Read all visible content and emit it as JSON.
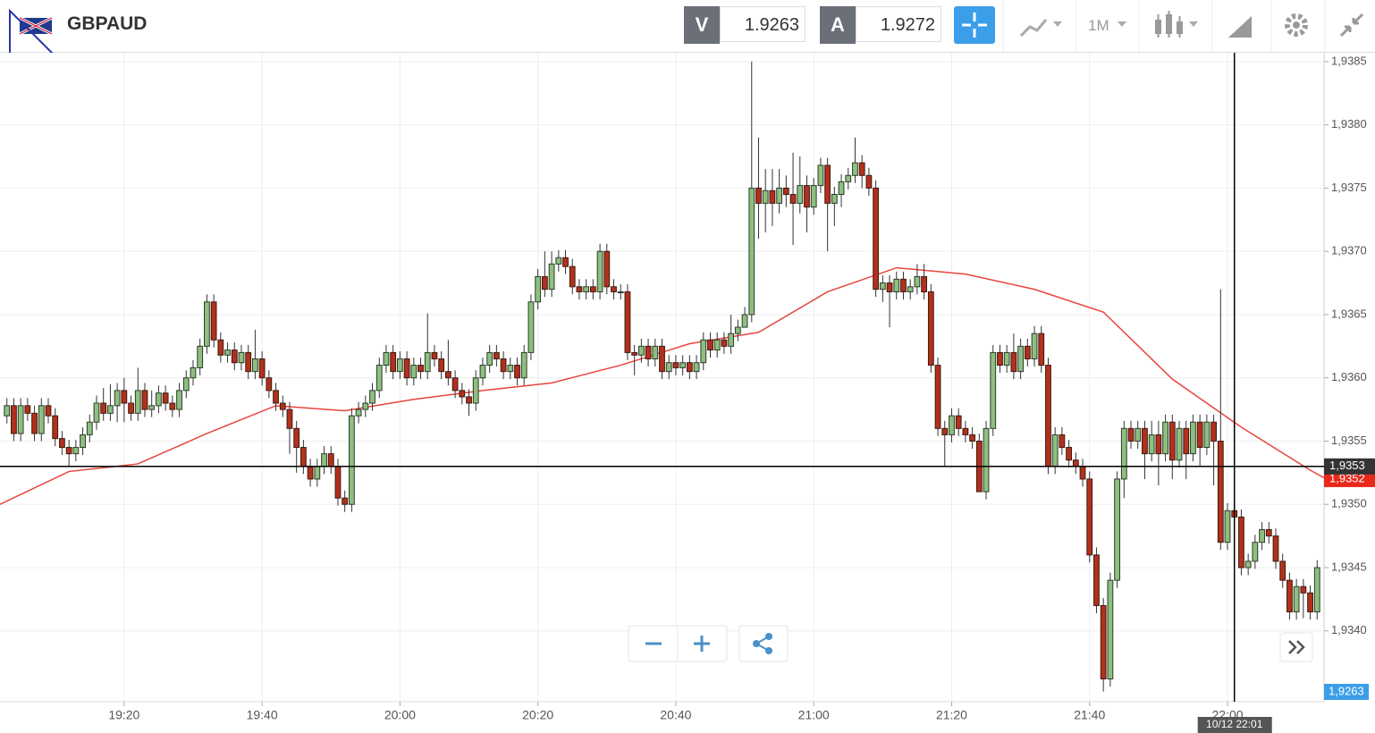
{
  "header": {
    "symbol": "GBPAUD",
    "bid_label": "V",
    "bid": 1.9263,
    "ask_label": "A",
    "ask": 1.9272,
    "timeframe": "1M"
  },
  "chart_data": {
    "type": "candlestick",
    "up_color": "#8fbf7f",
    "down_color": "#b3301c",
    "x": [
      "19:03",
      "19:04",
      "19:05",
      "19:06",
      "19:07",
      "19:08",
      "19:09",
      "19:10",
      "19:11",
      "19:12",
      "19:13",
      "19:14",
      "19:15",
      "19:16",
      "19:17",
      "19:18",
      "19:19",
      "19:20",
      "19:21",
      "19:22",
      "19:23",
      "19:24",
      "19:25",
      "19:26",
      "19:27",
      "19:28",
      "19:29",
      "19:30",
      "19:31",
      "19:32",
      "19:33",
      "19:34",
      "19:35",
      "19:36",
      "19:37",
      "19:38",
      "19:39",
      "19:40",
      "19:41",
      "19:42",
      "19:43",
      "19:44",
      "19:45",
      "19:46",
      "19:47",
      "19:48",
      "19:49",
      "19:50",
      "19:51",
      "19:52",
      "19:53",
      "19:54",
      "19:55",
      "19:56",
      "19:57",
      "19:58",
      "19:59",
      "20:00",
      "20:01",
      "20:02",
      "20:03",
      "20:04",
      "20:05",
      "20:06",
      "20:07",
      "20:08",
      "20:09",
      "20:10",
      "20:11",
      "20:12",
      "20:13",
      "20:14",
      "20:15",
      "20:16",
      "20:17",
      "20:18",
      "20:19",
      "20:20",
      "20:21",
      "20:22",
      "20:23",
      "20:24",
      "20:25",
      "20:26",
      "20:27",
      "20:28",
      "20:29",
      "20:30",
      "20:31",
      "20:32",
      "20:33",
      "20:34",
      "20:35",
      "20:36",
      "20:37",
      "20:38",
      "20:39",
      "20:40",
      "20:41",
      "20:42",
      "20:43",
      "20:44",
      "20:45",
      "20:46",
      "20:47",
      "20:48",
      "20:49",
      "20:50",
      "20:51",
      "20:52",
      "20:53",
      "20:54",
      "20:55",
      "20:56",
      "20:57",
      "20:58",
      "20:59",
      "21:00",
      "21:01",
      "21:02",
      "21:03",
      "21:04",
      "21:05",
      "21:06",
      "21:07",
      "21:08",
      "21:09",
      "21:10",
      "21:11",
      "21:12",
      "21:13",
      "21:14",
      "21:15",
      "21:16",
      "21:17",
      "21:18",
      "21:19",
      "21:20",
      "21:21",
      "21:22",
      "21:23",
      "21:24",
      "21:25",
      "21:26",
      "21:27",
      "21:28",
      "21:29",
      "21:30",
      "21:31",
      "21:32",
      "21:33",
      "21:34",
      "21:35",
      "21:36",
      "21:37",
      "21:38",
      "21:39",
      "21:40",
      "21:41",
      "21:42",
      "21:43",
      "21:44",
      "21:45",
      "21:46",
      "21:47",
      "21:48",
      "21:49",
      "21:50",
      "21:51",
      "21:52",
      "21:53",
      "21:54",
      "21:55",
      "21:56",
      "21:57",
      "21:58",
      "21:59",
      "22:00",
      "22:01",
      "22:02",
      "22:03",
      "22:04",
      "22:05",
      "22:06",
      "22:07",
      "22:08",
      "22:09",
      "22:10",
      "22:11",
      "22:12",
      "22:13"
    ],
    "open": [
      1.9357,
      1.93578,
      1.93556,
      1.93578,
      1.93572,
      1.93556,
      1.93578,
      1.9357,
      1.93552,
      1.93545,
      1.9354,
      1.93545,
      1.93555,
      1.93565,
      1.9358,
      1.93572,
      1.93578,
      1.9359,
      1.9358,
      1.93572,
      1.9359,
      1.93575,
      1.93578,
      1.93588,
      1.9358,
      1.93575,
      1.9359,
      1.936,
      1.93608,
      1.93625,
      1.9366,
      1.9363,
      1.93618,
      1.93622,
      1.93612,
      1.9362,
      1.93605,
      1.93615,
      1.936,
      1.9359,
      1.9358,
      1.93575,
      1.9356,
      1.93545,
      1.9353,
      1.9352,
      1.9353,
      1.9354,
      1.9353,
      1.93505,
      1.935,
      1.9357,
      1.93575,
      1.9358,
      1.9359,
      1.9361,
      1.9362,
      1.93605,
      1.93615,
      1.936,
      1.9361,
      1.93605,
      1.9362,
      1.93615,
      1.93605,
      1.936,
      1.9359,
      1.93585,
      1.9358,
      1.936,
      1.9361,
      1.9362,
      1.93615,
      1.93605,
      1.9361,
      1.936,
      1.9362,
      1.9366,
      1.9368,
      1.9367,
      1.9369,
      1.93695,
      1.93688,
      1.93672,
      1.93668,
      1.93672,
      1.93668,
      1.937,
      1.93672,
      1.93668,
      1.93668,
      1.9362,
      1.93618,
      1.93625,
      1.93615,
      1.93625,
      1.93605,
      1.93612,
      1.93608,
      1.93612,
      1.93605,
      1.93612,
      1.9363,
      1.93622,
      1.9363,
      1.93625,
      1.93635,
      1.9364,
      1.9365,
      1.9375,
      1.93738,
      1.93748,
      1.93738,
      1.9375,
      1.93745,
      1.93738,
      1.93752,
      1.93735,
      1.93752,
      1.93768,
      1.93738,
      1.93745,
      1.93755,
      1.9376,
      1.9377,
      1.9376,
      1.9375,
      1.9367,
      1.93675,
      1.93668,
      1.93678,
      1.93668,
      1.93672,
      1.9368,
      1.93668,
      1.9361,
      1.9356,
      1.93555,
      1.9357,
      1.9356,
      1.93555,
      1.9355,
      1.9351,
      1.9356,
      1.9362,
      1.9361,
      1.9362,
      1.93605,
      1.93625,
      1.93615,
      1.93635,
      1.9361,
      1.9353,
      1.93555,
      1.93545,
      1.93535,
      1.9353,
      1.9352,
      1.9346,
      1.9342,
      1.93362,
      1.9344,
      1.9352,
      1.9356,
      1.9355,
      1.9356,
      1.9354,
      1.93555,
      1.9354,
      1.93565,
      1.93535,
      1.9356,
      1.9354,
      1.93565,
      1.93545,
      1.93565,
      1.9355,
      1.9347,
      1.93495,
      1.9349,
      1.9345,
      1.93455,
      1.9347,
      1.9348,
      1.93475,
      1.93455,
      1.9344,
      1.93415,
      1.93435,
      1.9343,
      1.93415
    ],
    "high": [
      1.93584,
      1.93584,
      1.93584,
      1.93584,
      1.93578,
      1.93584,
      1.93584,
      1.93576,
      1.93558,
      1.93551,
      1.93551,
      1.93561,
      1.93571,
      1.93586,
      1.93592,
      1.93595,
      1.93596,
      1.936,
      1.93586,
      1.93608,
      1.93596,
      1.9359,
      1.93594,
      1.93594,
      1.93586,
      1.93596,
      1.93606,
      1.93614,
      1.93631,
      1.93666,
      1.93666,
      1.93636,
      1.93628,
      1.93628,
      1.93626,
      1.93626,
      1.93638,
      1.93621,
      1.93606,
      1.93596,
      1.93586,
      1.93581,
      1.93566,
      1.93551,
      1.93536,
      1.93536,
      1.93546,
      1.93546,
      1.93536,
      1.93511,
      1.93576,
      1.93581,
      1.93586,
      1.93596,
      1.93616,
      1.93626,
      1.93626,
      1.93621,
      1.93621,
      1.93616,
      1.93616,
      1.93651,
      1.93626,
      1.93621,
      1.9363,
      1.93606,
      1.93596,
      1.93591,
      1.93606,
      1.93616,
      1.93626,
      1.93626,
      1.93621,
      1.93616,
      1.93616,
      1.93626,
      1.93666,
      1.93686,
      1.937,
      1.937,
      1.93701,
      1.93701,
      1.93694,
      1.93678,
      1.93678,
      1.93678,
      1.93706,
      1.93706,
      1.93678,
      1.93674,
      1.93674,
      1.93626,
      1.93631,
      1.93631,
      1.93631,
      1.93631,
      1.93618,
      1.93618,
      1.93618,
      1.93618,
      1.93618,
      1.93636,
      1.93636,
      1.93636,
      1.93636,
      1.9365,
      1.93646,
      1.93656,
      1.9385,
      1.9379,
      1.93765,
      1.93765,
      1.93765,
      1.9376,
      1.93778,
      1.93775,
      1.9376,
      1.93758,
      1.93774,
      1.93774,
      1.93751,
      1.93761,
      1.93766,
      1.9379,
      1.93776,
      1.93766,
      1.93756,
      1.93681,
      1.93681,
      1.93684,
      1.93684,
      1.93678,
      1.9369,
      1.9369,
      1.93674,
      1.93616,
      1.93566,
      1.93576,
      1.93576,
      1.93566,
      1.93561,
      1.93556,
      1.93566,
      1.93626,
      1.93626,
      1.93626,
      1.93635,
      1.93631,
      1.93631,
      1.93641,
      1.93641,
      1.93616,
      1.93561,
      1.93561,
      1.93551,
      1.93541,
      1.93536,
      1.93526,
      1.93466,
      1.93426,
      1.93446,
      1.93526,
      1.93566,
      1.93566,
      1.93566,
      1.93566,
      1.93566,
      1.93566,
      1.93571,
      1.93571,
      1.93566,
      1.93566,
      1.93571,
      1.93571,
      1.93571,
      1.93571,
      1.9367,
      1.93501,
      1.93501,
      1.93496,
      1.93461,
      1.93476,
      1.93486,
      1.93486,
      1.93481,
      1.93461,
      1.93446,
      1.93441,
      1.93441,
      1.93436,
      1.93456
    ],
    "low": [
      1.93564,
      1.9355,
      1.9355,
      1.93566,
      1.9355,
      1.9355,
      1.93564,
      1.93546,
      1.93539,
      1.9353,
      1.93534,
      1.93539,
      1.93549,
      1.93559,
      1.93566,
      1.93566,
      1.93565,
      1.93565,
      1.93566,
      1.93566,
      1.93569,
      1.93569,
      1.93572,
      1.93574,
      1.93569,
      1.93569,
      1.93584,
      1.93594,
      1.93602,
      1.93619,
      1.93624,
      1.93612,
      1.93612,
      1.93606,
      1.93606,
      1.93599,
      1.93599,
      1.93594,
      1.93584,
      1.93574,
      1.93569,
      1.9354,
      1.93525,
      1.93524,
      1.93514,
      1.93514,
      1.93524,
      1.93524,
      1.93499,
      1.93494,
      1.93494,
      1.93564,
      1.93569,
      1.93574,
      1.93584,
      1.93604,
      1.93599,
      1.93599,
      1.93594,
      1.93594,
      1.93599,
      1.93599,
      1.93609,
      1.93599,
      1.93594,
      1.93584,
      1.93579,
      1.9357,
      1.93574,
      1.93594,
      1.93604,
      1.93609,
      1.93599,
      1.93599,
      1.93594,
      1.93594,
      1.93614,
      1.93654,
      1.93664,
      1.93664,
      1.93684,
      1.93682,
      1.93666,
      1.93662,
      1.93662,
      1.93662,
      1.93662,
      1.93666,
      1.93662,
      1.93662,
      1.93614,
      1.93602,
      1.93612,
      1.93609,
      1.93609,
      1.93599,
      1.93599,
      1.93602,
      1.93602,
      1.93599,
      1.93599,
      1.93606,
      1.93616,
      1.93616,
      1.93619,
      1.93619,
      1.93629,
      1.93644,
      1.93644,
      1.9371,
      1.93715,
      1.9372,
      1.9373,
      1.93735,
      1.93705,
      1.9373,
      1.93715,
      1.93729,
      1.93746,
      1.937,
      1.9372,
      1.93735,
      1.93749,
      1.93754,
      1.9375,
      1.93744,
      1.93664,
      1.9366,
      1.9364,
      1.93662,
      1.93662,
      1.93662,
      1.93666,
      1.93662,
      1.93604,
      1.93554,
      1.9353,
      1.93549,
      1.93554,
      1.93549,
      1.93544,
      1.9351,
      1.93504,
      1.93554,
      1.93604,
      1.93604,
      1.93599,
      1.93599,
      1.93609,
      1.93609,
      1.93604,
      1.93524,
      1.93524,
      1.93539,
      1.93529,
      1.93524,
      1.93514,
      1.93454,
      1.93414,
      1.93352,
      1.93356,
      1.93434,
      1.93505,
      1.93544,
      1.93544,
      1.9352,
      1.93534,
      1.93515,
      1.93534,
      1.9352,
      1.93529,
      1.9352,
      1.93534,
      1.9353,
      1.93539,
      1.93515,
      1.93464,
      1.93464,
      1.93484,
      1.93444,
      1.93444,
      1.93449,
      1.93464,
      1.93469,
      1.93449,
      1.93434,
      1.93409,
      1.93409,
      1.9341,
      1.93409,
      1.93409
    ],
    "close": [
      1.93578,
      1.93556,
      1.93578,
      1.93572,
      1.93556,
      1.93578,
      1.9357,
      1.93552,
      1.93545,
      1.9354,
      1.93545,
      1.93555,
      1.93565,
      1.9358,
      1.93572,
      1.93578,
      1.9359,
      1.9358,
      1.93572,
      1.9359,
      1.93575,
      1.93578,
      1.93588,
      1.9358,
      1.93575,
      1.9359,
      1.936,
      1.93608,
      1.93625,
      1.9366,
      1.9363,
      1.93618,
      1.93622,
      1.93612,
      1.9362,
      1.93605,
      1.93615,
      1.936,
      1.9359,
      1.9358,
      1.93575,
      1.9356,
      1.93545,
      1.9353,
      1.9352,
      1.9353,
      1.9354,
      1.9353,
      1.93505,
      1.935,
      1.9357,
      1.93575,
      1.9358,
      1.9359,
      1.9361,
      1.9362,
      1.93605,
      1.93615,
      1.936,
      1.9361,
      1.93605,
      1.9362,
      1.93615,
      1.93605,
      1.936,
      1.9359,
      1.93585,
      1.9358,
      1.936,
      1.9361,
      1.9362,
      1.93615,
      1.93605,
      1.9361,
      1.936,
      1.9362,
      1.9366,
      1.9368,
      1.9367,
      1.9369,
      1.93695,
      1.93688,
      1.93672,
      1.93668,
      1.93672,
      1.93668,
      1.937,
      1.93672,
      1.93668,
      1.93668,
      1.9362,
      1.93618,
      1.93625,
      1.93615,
      1.93625,
      1.93605,
      1.93612,
      1.93608,
      1.93612,
      1.93605,
      1.93612,
      1.9363,
      1.93622,
      1.9363,
      1.93625,
      1.93635,
      1.9364,
      1.9365,
      1.9375,
      1.93738,
      1.93748,
      1.93738,
      1.9375,
      1.93745,
      1.93738,
      1.93752,
      1.93735,
      1.93752,
      1.93768,
      1.93738,
      1.93745,
      1.93755,
      1.9376,
      1.9377,
      1.9376,
      1.9375,
      1.9367,
      1.93675,
      1.93668,
      1.93678,
      1.93668,
      1.93672,
      1.9368,
      1.93668,
      1.9361,
      1.9356,
      1.93555,
      1.9357,
      1.9356,
      1.93555,
      1.9355,
      1.9351,
      1.9356,
      1.9362,
      1.9361,
      1.9362,
      1.93605,
      1.93625,
      1.93615,
      1.93635,
      1.9361,
      1.9353,
      1.93555,
      1.93545,
      1.93535,
      1.9353,
      1.9352,
      1.9346,
      1.9342,
      1.93362,
      1.9344,
      1.9352,
      1.9356,
      1.9355,
      1.9356,
      1.9354,
      1.93555,
      1.9354,
      1.93565,
      1.93535,
      1.9356,
      1.9354,
      1.93565,
      1.93545,
      1.93565,
      1.9355,
      1.9347,
      1.93495,
      1.9349,
      1.9345,
      1.93455,
      1.9347,
      1.9348,
      1.93475,
      1.93455,
      1.9344,
      1.93415,
      1.93435,
      1.9343,
      1.93415,
      1.9345
    ],
    "ma": {
      "color": "#e8453c",
      "x": [
        "19:02",
        "19:12",
        "19:22",
        "19:32",
        "19:42",
        "19:52",
        "20:02",
        "20:12",
        "20:22",
        "20:32",
        "20:42",
        "20:52",
        "21:02",
        "21:12",
        "21:22",
        "21:32",
        "21:42",
        "21:52",
        "22:02",
        "22:12",
        "22:14"
      ],
      "values": [
        1.935,
        1.93526,
        1.93532,
        1.93556,
        1.93578,
        1.93574,
        1.93583,
        1.9359,
        1.93596,
        1.9361,
        1.93627,
        1.93636,
        1.93668,
        1.93687,
        1.93682,
        1.9367,
        1.93652,
        1.93599,
        1.93561,
        1.93527,
        1.93521
      ]
    },
    "xlim": [
      "19:02",
      "22:14"
    ],
    "xticks": [
      "19:20",
      "19:40",
      "20:00",
      "20:20",
      "20:40",
      "21:00",
      "21:20",
      "21:40",
      "22:00"
    ],
    "ylim": [
      1.93344,
      1.93857
    ],
    "yticks": [
      {
        "value": 1.934,
        "label": "1,9340"
      },
      {
        "value": 1.9345,
        "label": "1,9345"
      },
      {
        "value": 1.935,
        "label": "1,9350"
      },
      {
        "value": 1.9355,
        "label": "1,9355"
      },
      {
        "value": 1.936,
        "label": "1,9360"
      },
      {
        "value": 1.9365,
        "label": "1,9365"
      },
      {
        "value": 1.937,
        "label": "1,9370"
      },
      {
        "value": 1.9375,
        "label": "1,9375"
      },
      {
        "value": 1.938,
        "label": "1,9380"
      },
      {
        "value": 1.9385,
        "label": "1,9385"
      }
    ],
    "grid": true,
    "last_price": {
      "value": 1.9352,
      "label": "1,9352"
    },
    "crosshair": {
      "price": {
        "value": 1.9353,
        "label": "1,9353"
      },
      "time_label": "10/12 22:01"
    },
    "bid_tag": "1,9263"
  }
}
